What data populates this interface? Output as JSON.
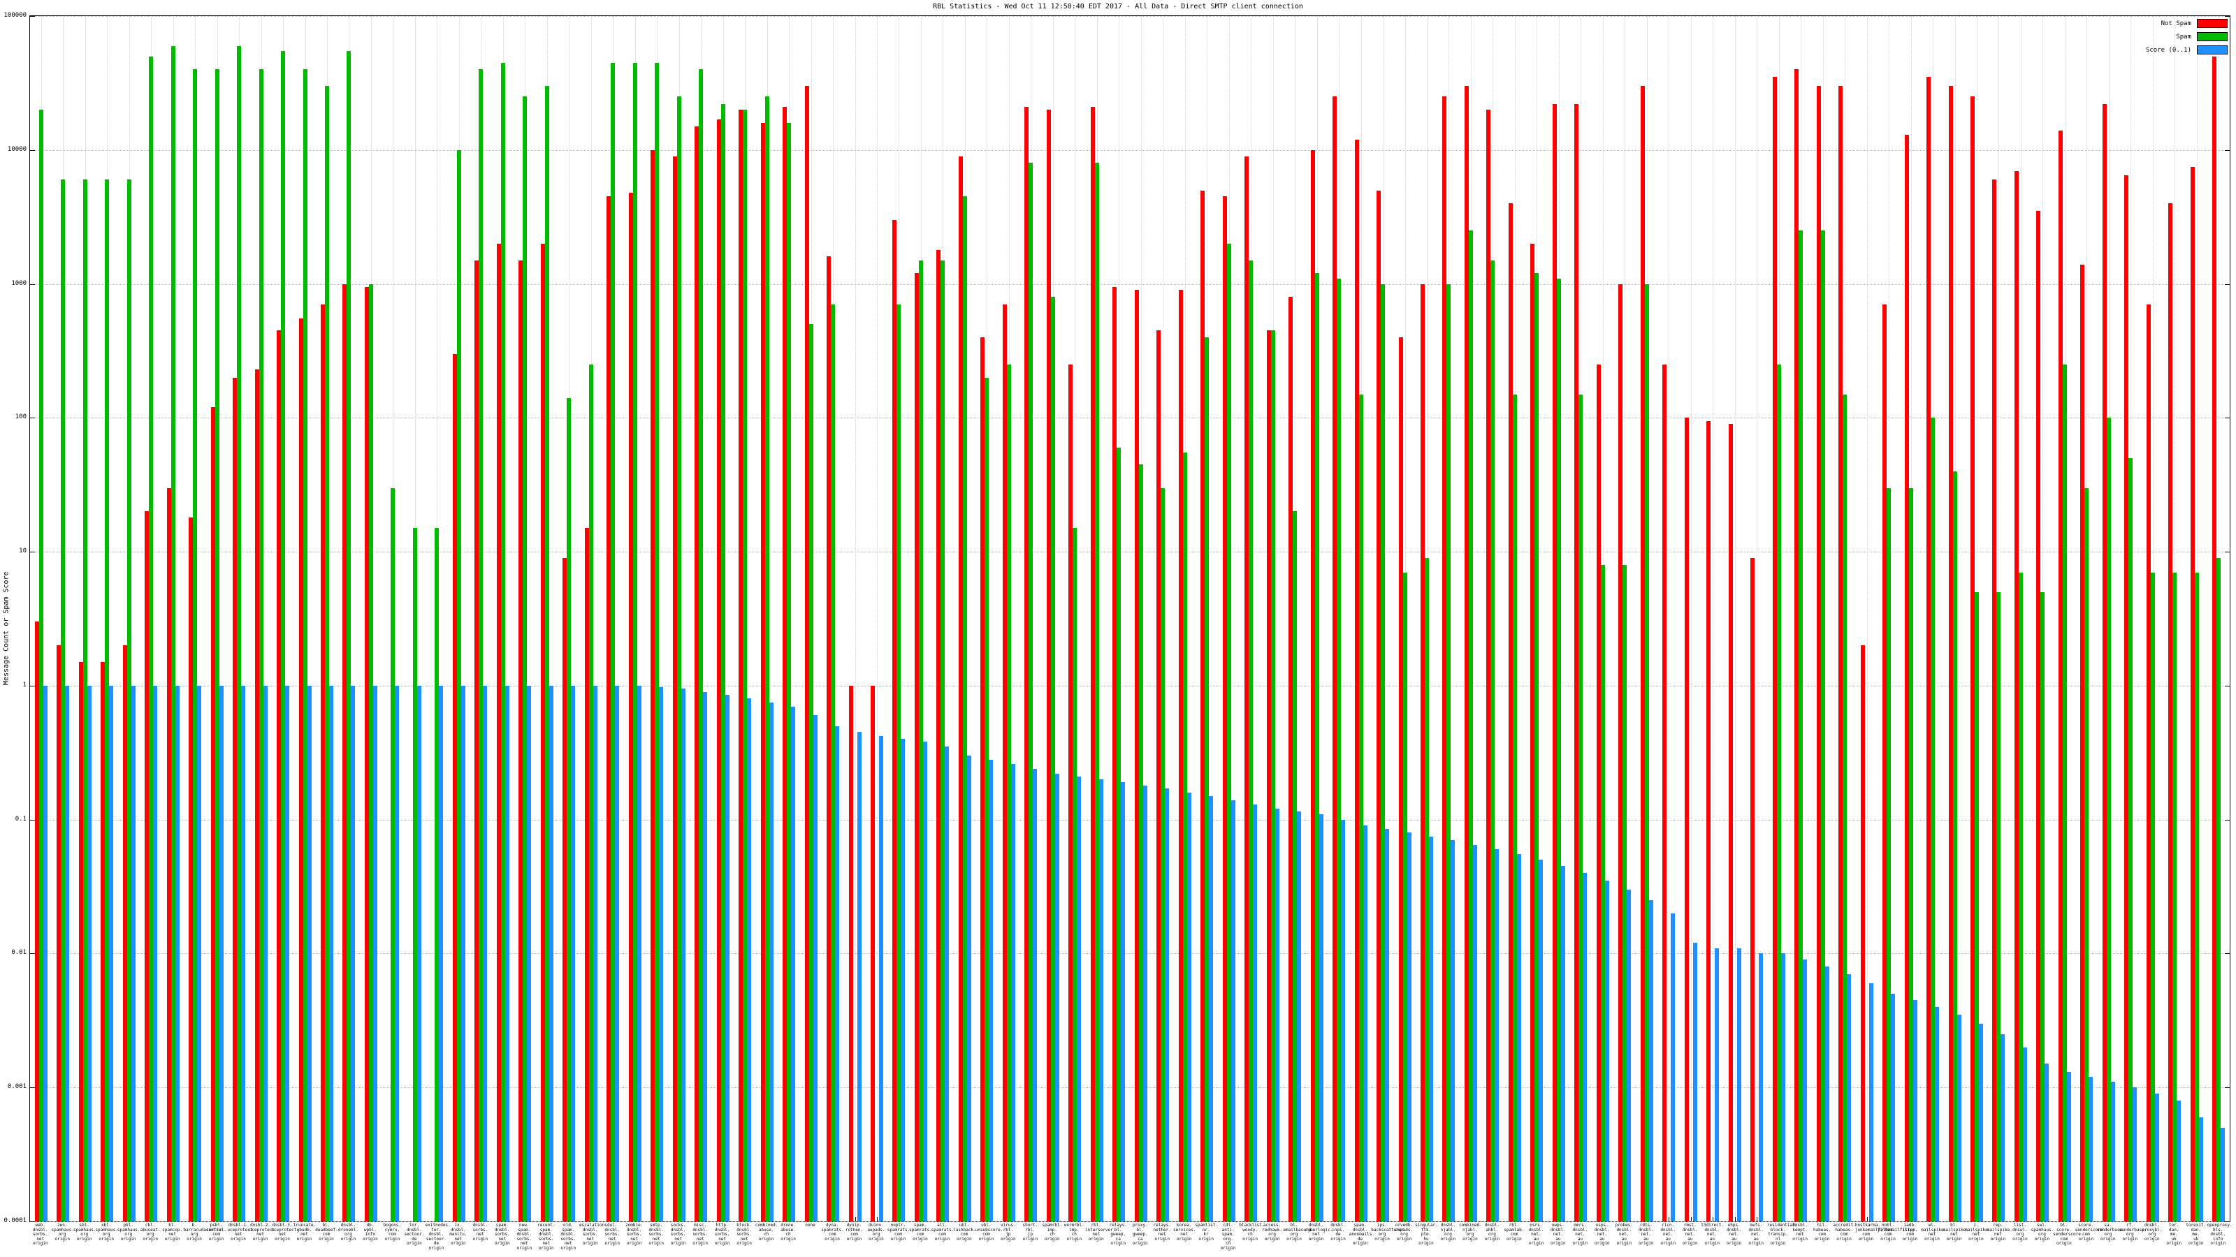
{
  "chart_data": {
    "type": "bar",
    "title": "RBL Statistics - Wed Oct 11 12:50:40 EDT 2017 - All Data - Direct SMTP client connection",
    "ylabel": "Message Count or Spam Score",
    "xlabel": "",
    "yscale": "log",
    "ylim": [
      0.0001,
      100000
    ],
    "y_ticks": [
      "100000",
      "10000",
      "1000",
      "100",
      "10",
      "1",
      "0.1",
      "0.01",
      "0.001",
      "0.0001"
    ],
    "grid": true,
    "legend_position": "top-right",
    "background": "#ffffff",
    "categories": [
      "web. dnsbl. sorbs. net origin",
      "zen. spamhaus. org origin",
      "sbl. spamhaus. org origin",
      "xbl. spamhaus. org origin",
      "pbl. spamhaus. org origin",
      "cbl. abuseat. org origin",
      "bl. spamcop. net origin",
      "b. barracudacentral. org origin",
      "psbl. surriel. com origin",
      "dnsbl-1. uceprotect. net origin",
      "dnsbl-2. uceprotect. net origin",
      "dnsbl-3. uceprotect. net origin",
      "truncate. gbudb. net origin",
      "bl. deadbeef. com origin",
      "dnsbl. dronebl. org origin",
      "db. wpbl. info origin",
      "bogons. cymru. com origin",
      "tor. dnsbl. sectoor. de origin",
      "exitnodes. tor. dnsbl. sectoor. de origin",
      "ix. dnsbl. manitu. net origin",
      "dnsbl. sorbs. net origin",
      "spam. dnsbl. sorbs. net origin",
      "new. spam. dnsbl. sorbs. net origin",
      "recent. spam. dnsbl. sorbs. net origin",
      "old. spam. dnsbl. sorbs. net origin",
      "escalations. dnsbl. sorbs. net origin",
      "dul. dnsbl. sorbs. net origin",
      "zombie. dnsbl. sorbs. net origin",
      "smtp. dnsbl. sorbs. net origin",
      "socks. dnsbl. sorbs. net origin",
      "misc. dnsbl. sorbs. net origin",
      "http. dnsbl. sorbs. net origin",
      "block. dnsbl. sorbs. net origin",
      "combined. abuse. ch origin",
      "drone. abuse. ch origin",
      "none",
      "dyna. spamrats. com origin",
      "dynip. rothen. com origin",
      "duinv. aupads. org origin",
      "noptr. spamrats. com origin",
      "spam. spamrats. com origin",
      "all. spamrats. com origin",
      "ubl. lashback. com origin",
      "ubl. unsubscore. com origin",
      "virus. rbl. jp origin",
      "short. rbl. jp origin",
      "spamrbl. imp. ch origin",
      "wormrbl. imp. ch origin",
      "rbl. interserver. net origin",
      "relays. bl. gweep. ca origin",
      "proxy. bl. gweep. ca origin",
      "relays. nether. net origin",
      "korea. services. net origin",
      "spamlist. or. kr origin",
      "cdl. anti-spam. org. cn origin",
      "blacklist. woody. ch origin",
      "access. redhawk. org origin",
      "bl. emailbasura. org origin",
      "dnsbl. cyberlogic. net origin",
      "dnsbl. inps. de origin",
      "spam. dnsbl. anonmails. de origin",
      "ips. backscatterer. org origin",
      "orvedb. aupads. org origin",
      "singular. ttk. pte. hu origin",
      "dnsbl. njabl. org origin",
      "combined. njabl. org origin",
      "dnsbl. ahbl. org origin",
      "rbl. spamlab. com origin",
      "osrs. dnsbl. net. au origin",
      "owps. dnsbl. net. au origin",
      "omrs. dnsbl. net. au origin",
      "osps. dnsbl. net. au origin",
      "probes. dnsbl. net. au origin",
      "rdts. dnsbl. net. au origin",
      "ricn. dnsbl. net. au origin",
      "rmst. dnsbl. net. au origin",
      "t3direct. dnsbl. net. au origin",
      "ohps. dnsbl. net. au origin",
      "owfs. dnsbl. net. au origin",
      "residential. block. transip. nl origin",
      "dnsbl. kempt. net origin",
      "hil. habeas. com origin",
      "accredit. habeas. com origin",
      "hostkarma. junkemailfilter. com origin",
      "nobl. junkemailfilter. com origin",
      "iadb. isipp. com origin",
      "wl. mailspike. net origin",
      "bl. mailspike. net origin",
      "z. mailspike. net origin",
      "rep. mailspike. net origin",
      "list. dnswl. org origin",
      "swl. spamhaus. org origin",
      "bl. score. senderscore. com origin",
      "score. senderscore. com origin",
      "sa. senderbase. org origin",
      "rf. senderbase. org origin",
      "dnsbl. proxybl. org origin",
      "tor. dan. me. uk origin",
      "torexit. dan. me. uk origin",
      "openproxy. bls. dnsbl. info origin"
    ],
    "series": [
      {
        "name": "Not Spam",
        "color": "#ff0000",
        "values": [
          3,
          2,
          1.5,
          1.5,
          2,
          20,
          30,
          18,
          120,
          200,
          230,
          450,
          550,
          700,
          1000,
          950,
          0,
          0,
          0,
          300,
          1500,
          2000,
          1500,
          2000,
          9,
          15,
          4500,
          4800,
          10000,
          9000,
          15000,
          17000,
          20000,
          16000,
          21000,
          30000,
          1600,
          1,
          1,
          3000,
          1200,
          1800,
          9000,
          400,
          700,
          21000,
          20000,
          250,
          21000,
          950,
          900,
          450,
          900,
          5000,
          4500,
          9000,
          450,
          800,
          10000,
          25000,
          12000,
          5000,
          400,
          1000,
          25000,
          30000,
          20000,
          4000,
          2000,
          22000,
          22000,
          250,
          1000,
          30000,
          250,
          100,
          95,
          90,
          9,
          35000,
          40000,
          30000,
          30000,
          2,
          700,
          13000,
          35000,
          30000,
          25000,
          6000,
          7000,
          3500,
          14000,
          1400,
          22000,
          6500,
          700,
          4000,
          7500,
          50000
        ]
      },
      {
        "name": "Spam",
        "color": "#00bb00",
        "values": [
          20000,
          6000,
          6000,
          6000,
          6000,
          50000,
          60000,
          40000,
          40000,
          60000,
          40000,
          55000,
          40000,
          30000,
          55000,
          1000,
          30,
          15,
          15,
          10000,
          40000,
          45000,
          25000,
          30000,
          140,
          250,
          45000,
          45000,
          45000,
          25000,
          40000,
          22000,
          20000,
          25000,
          16000,
          500,
          700,
          0,
          0,
          700,
          1500,
          1500,
          4500,
          200,
          250,
          8000,
          800,
          15,
          8000,
          60,
          45,
          30,
          55,
          400,
          2000,
          1500,
          450,
          20,
          1200,
          1100,
          150,
          1000,
          7,
          9,
          1000,
          2500,
          1500,
          150,
          1200,
          1100,
          150,
          8,
          8,
          1000,
          0,
          0,
          0,
          0,
          0,
          250,
          2500,
          2500,
          150,
          0,
          30,
          30,
          100,
          40,
          5,
          5,
          7,
          5,
          250,
          30,
          100,
          50,
          7,
          7,
          7,
          9
        ]
      },
      {
        "name": "Score (0..1)",
        "color": "#1e90ff",
        "values": [
          1,
          1,
          1,
          1,
          1,
          1,
          1,
          1,
          1,
          1,
          1,
          1,
          1,
          1,
          1,
          1,
          1,
          1,
          1,
          1,
          1,
          1,
          1,
          1,
          1,
          1,
          1,
          1,
          0.98,
          0.95,
          0.9,
          0.85,
          0.8,
          0.75,
          0.7,
          0.6,
          0.5,
          0.45,
          0.42,
          0.4,
          0.38,
          0.35,
          0.3,
          0.28,
          0.26,
          0.24,
          0.22,
          0.21,
          0.2,
          0.19,
          0.18,
          0.17,
          0.16,
          0.15,
          0.14,
          0.13,
          0.12,
          0.115,
          0.11,
          0.1,
          0.09,
          0.085,
          0.08,
          0.075,
          0.07,
          0.065,
          0.06,
          0.055,
          0.05,
          0.045,
          0.04,
          0.035,
          0.03,
          0.025,
          0.02,
          0.012,
          0.011,
          0.011,
          0.01,
          0.01,
          0.009,
          0.008,
          0.007,
          0.006,
          0.005,
          0.0045,
          0.004,
          0.0035,
          0.003,
          0.0025,
          0.002,
          0.0015,
          0.0013,
          0.0012,
          0.0011,
          0.001,
          0.0009,
          0.0008,
          0.0006,
          0.0005
        ]
      }
    ]
  }
}
